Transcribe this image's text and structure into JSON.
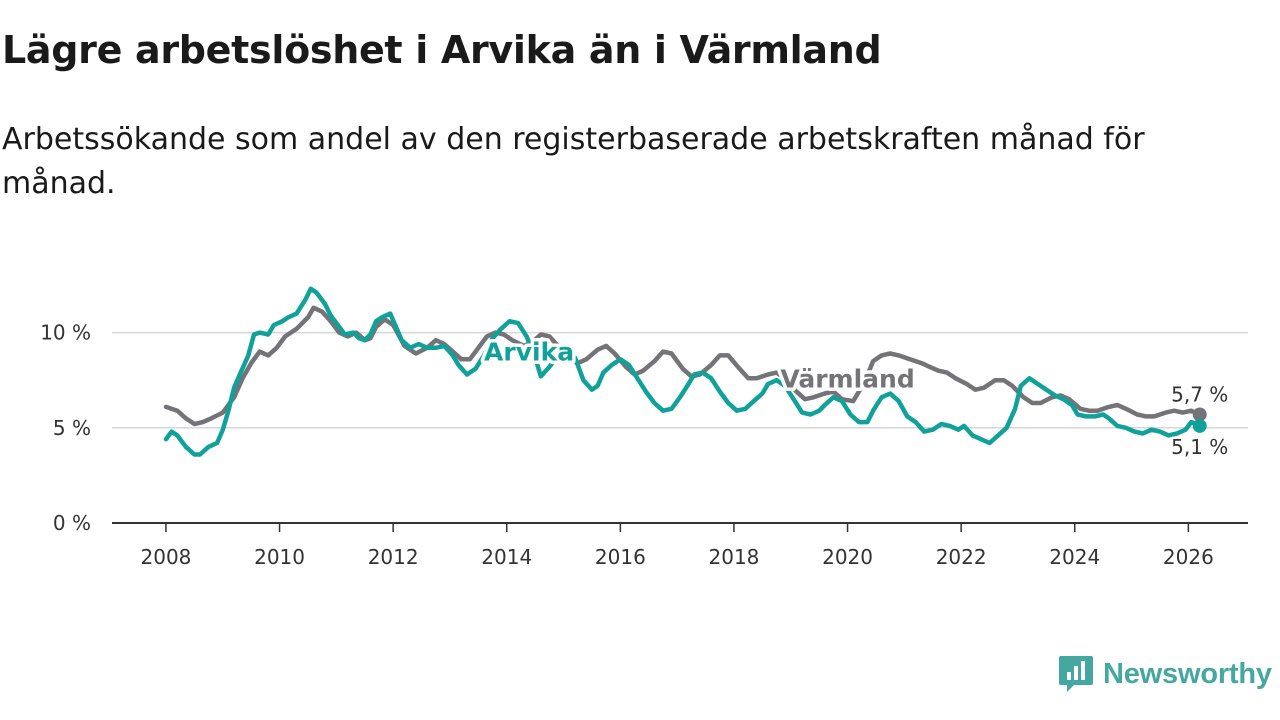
{
  "header": {
    "title": "Lägre arbetslöshet i Arvika än i Värmland",
    "subtitle": "Arbetssökande som andel av den registerbaserade arbetskraften månad för månad."
  },
  "brand": {
    "name": "Newsworthy",
    "color": "#45a8a0"
  },
  "chart_data": {
    "type": "line",
    "title": "Lägre arbetslöshet i Arvika än i Värmland",
    "subtitle": "Arbetssökande som andel av den registerbaserade arbetskraften månad för månad.",
    "xlabel": "",
    "ylabel": "",
    "xlim": [
      2007.05,
      2027.05
    ],
    "ylim": [
      0,
      12.5
    ],
    "grid": true,
    "x_ticks": [
      2008,
      2010,
      2012,
      2014,
      2016,
      2018,
      2020,
      2022,
      2024,
      2026
    ],
    "x_tick_labels": [
      "2008",
      "2010",
      "2012",
      "2014",
      "2016",
      "2018",
      "2020",
      "2022",
      "2024",
      "2026"
    ],
    "y_ticks": [
      0,
      5,
      10
    ],
    "y_tick_labels": [
      "0 %",
      "5 %",
      "10 %"
    ],
    "series": [
      {
        "name": "Värmland",
        "color": "#747377",
        "end_label": "5,7 %",
        "points": [
          [
            2008.0,
            6.1
          ],
          [
            2008.2,
            5.9
          ],
          [
            2008.35,
            5.5
          ],
          [
            2008.5,
            5.2
          ],
          [
            2008.65,
            5.3
          ],
          [
            2008.8,
            5.5
          ],
          [
            2009.0,
            5.8
          ],
          [
            2009.2,
            6.6
          ],
          [
            2009.35,
            7.6
          ],
          [
            2009.5,
            8.4
          ],
          [
            2009.65,
            9.0
          ],
          [
            2009.8,
            8.8
          ],
          [
            2009.95,
            9.2
          ],
          [
            2010.1,
            9.8
          ],
          [
            2010.3,
            10.2
          ],
          [
            2010.5,
            10.8
          ],
          [
            2010.6,
            11.3
          ],
          [
            2010.75,
            11.1
          ],
          [
            2010.9,
            10.6
          ],
          [
            2011.05,
            10.0
          ],
          [
            2011.2,
            9.8
          ],
          [
            2011.35,
            10.0
          ],
          [
            2011.5,
            9.6
          ],
          [
            2011.6,
            9.7
          ],
          [
            2011.7,
            10.3
          ],
          [
            2011.85,
            10.7
          ],
          [
            2012.0,
            10.4
          ],
          [
            2012.2,
            9.3
          ],
          [
            2012.4,
            8.9
          ],
          [
            2012.6,
            9.2
          ],
          [
            2012.75,
            9.6
          ],
          [
            2012.9,
            9.4
          ],
          [
            2013.05,
            9.0
          ],
          [
            2013.2,
            8.6
          ],
          [
            2013.35,
            8.6
          ],
          [
            2013.5,
            9.2
          ],
          [
            2013.65,
            9.8
          ],
          [
            2013.8,
            10.0
          ],
          [
            2013.95,
            9.9
          ],
          [
            2014.1,
            9.6
          ],
          [
            2014.3,
            9.3
          ],
          [
            2014.45,
            9.5
          ],
          [
            2014.6,
            9.9
          ],
          [
            2014.75,
            9.8
          ],
          [
            2014.9,
            9.3
          ],
          [
            2015.1,
            8.7
          ],
          [
            2015.25,
            8.4
          ],
          [
            2015.4,
            8.6
          ],
          [
            2015.6,
            9.1
          ],
          [
            2015.75,
            9.3
          ],
          [
            2015.9,
            8.9
          ],
          [
            2016.1,
            8.2
          ],
          [
            2016.25,
            7.8
          ],
          [
            2016.4,
            8.0
          ],
          [
            2016.6,
            8.5
          ],
          [
            2016.75,
            9.0
          ],
          [
            2016.9,
            8.9
          ],
          [
            2017.1,
            8.1
          ],
          [
            2017.25,
            7.7
          ],
          [
            2017.4,
            7.8
          ],
          [
            2017.6,
            8.3
          ],
          [
            2017.75,
            8.8
          ],
          [
            2017.9,
            8.8
          ],
          [
            2018.1,
            8.1
          ],
          [
            2018.25,
            7.6
          ],
          [
            2018.4,
            7.6
          ],
          [
            2018.6,
            7.8
          ],
          [
            2018.75,
            7.9
          ],
          [
            2018.9,
            7.6
          ],
          [
            2019.1,
            6.9
          ],
          [
            2019.25,
            6.5
          ],
          [
            2019.4,
            6.6
          ],
          [
            2019.6,
            6.8
          ],
          [
            2019.75,
            6.9
          ],
          [
            2019.9,
            6.5
          ],
          [
            2020.1,
            6.4
          ],
          [
            2020.3,
            7.4
          ],
          [
            2020.45,
            8.5
          ],
          [
            2020.6,
            8.8
          ],
          [
            2020.75,
            8.9
          ],
          [
            2020.9,
            8.8
          ],
          [
            2021.1,
            8.6
          ],
          [
            2021.3,
            8.4
          ],
          [
            2021.45,
            8.2
          ],
          [
            2021.6,
            8.0
          ],
          [
            2021.75,
            7.9
          ],
          [
            2021.9,
            7.6
          ],
          [
            2022.1,
            7.3
          ],
          [
            2022.25,
            7.0
          ],
          [
            2022.4,
            7.1
          ],
          [
            2022.6,
            7.5
          ],
          [
            2022.75,
            7.5
          ],
          [
            2022.9,
            7.2
          ],
          [
            2023.1,
            6.6
          ],
          [
            2023.25,
            6.3
          ],
          [
            2023.4,
            6.3
          ],
          [
            2023.6,
            6.6
          ],
          [
            2023.75,
            6.7
          ],
          [
            2023.9,
            6.5
          ],
          [
            2024.1,
            6.0
          ],
          [
            2024.25,
            5.9
          ],
          [
            2024.4,
            5.9
          ],
          [
            2024.6,
            6.1
          ],
          [
            2024.75,
            6.2
          ],
          [
            2024.9,
            6.0
          ],
          [
            2025.1,
            5.7
          ],
          [
            2025.25,
            5.6
          ],
          [
            2025.4,
            5.6
          ],
          [
            2025.6,
            5.8
          ],
          [
            2025.75,
            5.9
          ],
          [
            2025.9,
            5.8
          ],
          [
            2026.05,
            5.9
          ],
          [
            2026.2,
            5.7
          ]
        ]
      },
      {
        "name": "Arvika",
        "color": "#10a29a",
        "end_label": "5,1 %",
        "points": [
          [
            2008.0,
            4.4
          ],
          [
            2008.1,
            4.8
          ],
          [
            2008.2,
            4.6
          ],
          [
            2008.35,
            4.0
          ],
          [
            2008.5,
            3.6
          ],
          [
            2008.6,
            3.6
          ],
          [
            2008.75,
            4.0
          ],
          [
            2008.9,
            4.2
          ],
          [
            2009.0,
            4.9
          ],
          [
            2009.1,
            5.9
          ],
          [
            2009.2,
            7.1
          ],
          [
            2009.3,
            7.8
          ],
          [
            2009.45,
            8.8
          ],
          [
            2009.55,
            9.9
          ],
          [
            2009.65,
            10.0
          ],
          [
            2009.8,
            9.9
          ],
          [
            2009.9,
            10.4
          ],
          [
            2010.05,
            10.6
          ],
          [
            2010.15,
            10.8
          ],
          [
            2010.3,
            11.0
          ],
          [
            2010.45,
            11.7
          ],
          [
            2010.55,
            12.3
          ],
          [
            2010.65,
            12.1
          ],
          [
            2010.8,
            11.5
          ],
          [
            2010.9,
            10.9
          ],
          [
            2011.05,
            10.3
          ],
          [
            2011.15,
            9.9
          ],
          [
            2011.3,
            10.0
          ],
          [
            2011.4,
            9.7
          ],
          [
            2011.5,
            9.6
          ],
          [
            2011.6,
            9.9
          ],
          [
            2011.7,
            10.6
          ],
          [
            2011.8,
            10.8
          ],
          [
            2011.95,
            11.0
          ],
          [
            2012.05,
            10.3
          ],
          [
            2012.15,
            9.6
          ],
          [
            2012.3,
            9.2
          ],
          [
            2012.45,
            9.4
          ],
          [
            2012.6,
            9.2
          ],
          [
            2012.75,
            9.2
          ],
          [
            2012.9,
            9.3
          ],
          [
            2013.05,
            8.8
          ],
          [
            2013.15,
            8.3
          ],
          [
            2013.3,
            7.8
          ],
          [
            2013.45,
            8.1
          ],
          [
            2013.6,
            8.8
          ],
          [
            2013.75,
            9.7
          ],
          [
            2013.9,
            10.2
          ],
          [
            2014.05,
            10.6
          ],
          [
            2014.2,
            10.5
          ],
          [
            2014.35,
            9.8
          ],
          [
            2014.5,
            8.7
          ],
          [
            2014.6,
            7.7
          ],
          [
            2014.75,
            8.2
          ],
          [
            2014.9,
            8.8
          ],
          [
            2015.05,
            8.8
          ],
          [
            2015.2,
            8.7
          ],
          [
            2015.35,
            7.5
          ],
          [
            2015.5,
            7.0
          ],
          [
            2015.6,
            7.2
          ],
          [
            2015.7,
            7.9
          ],
          [
            2015.85,
            8.3
          ],
          [
            2016.0,
            8.6
          ],
          [
            2016.15,
            8.3
          ],
          [
            2016.3,
            7.6
          ],
          [
            2016.45,
            6.9
          ],
          [
            2016.6,
            6.3
          ],
          [
            2016.75,
            5.9
          ],
          [
            2016.9,
            6.0
          ],
          [
            2017.05,
            6.6
          ],
          [
            2017.2,
            7.3
          ],
          [
            2017.3,
            7.8
          ],
          [
            2017.45,
            7.9
          ],
          [
            2017.6,
            7.6
          ],
          [
            2017.75,
            6.9
          ],
          [
            2017.9,
            6.3
          ],
          [
            2018.05,
            5.9
          ],
          [
            2018.2,
            6.0
          ],
          [
            2018.35,
            6.4
          ],
          [
            2018.5,
            6.8
          ],
          [
            2018.6,
            7.3
          ],
          [
            2018.75,
            7.5
          ],
          [
            2018.9,
            7.2
          ],
          [
            2019.05,
            6.5
          ],
          [
            2019.2,
            5.8
          ],
          [
            2019.35,
            5.7
          ],
          [
            2019.5,
            5.9
          ],
          [
            2019.6,
            6.2
          ],
          [
            2019.75,
            6.6
          ],
          [
            2019.9,
            6.4
          ],
          [
            2020.05,
            5.7
          ],
          [
            2020.2,
            5.3
          ],
          [
            2020.35,
            5.3
          ],
          [
            2020.45,
            5.9
          ],
          [
            2020.6,
            6.6
          ],
          [
            2020.75,
            6.8
          ],
          [
            2020.9,
            6.4
          ],
          [
            2021.05,
            5.6
          ],
          [
            2021.2,
            5.3
          ],
          [
            2021.35,
            4.8
          ],
          [
            2021.5,
            4.9
          ],
          [
            2021.65,
            5.2
          ],
          [
            2021.8,
            5.1
          ],
          [
            2021.95,
            4.9
          ],
          [
            2022.05,
            5.1
          ],
          [
            2022.2,
            4.6
          ],
          [
            2022.35,
            4.4
          ],
          [
            2022.5,
            4.2
          ],
          [
            2022.65,
            4.6
          ],
          [
            2022.8,
            5.0
          ],
          [
            2022.95,
            6.0
          ],
          [
            2023.05,
            7.2
          ],
          [
            2023.2,
            7.6
          ],
          [
            2023.35,
            7.3
          ],
          [
            2023.5,
            7.0
          ],
          [
            2023.65,
            6.7
          ],
          [
            2023.8,
            6.5
          ],
          [
            2023.95,
            6.2
          ],
          [
            2024.05,
            5.7
          ],
          [
            2024.2,
            5.6
          ],
          [
            2024.35,
            5.6
          ],
          [
            2024.5,
            5.7
          ],
          [
            2024.6,
            5.5
          ],
          [
            2024.75,
            5.1
          ],
          [
            2024.9,
            5.0
          ],
          [
            2025.05,
            4.8
          ],
          [
            2025.2,
            4.7
          ],
          [
            2025.35,
            4.9
          ],
          [
            2025.5,
            4.8
          ],
          [
            2025.65,
            4.6
          ],
          [
            2025.8,
            4.7
          ],
          [
            2025.95,
            4.9
          ],
          [
            2026.05,
            5.3
          ],
          [
            2026.2,
            5.1
          ]
        ]
      }
    ]
  }
}
